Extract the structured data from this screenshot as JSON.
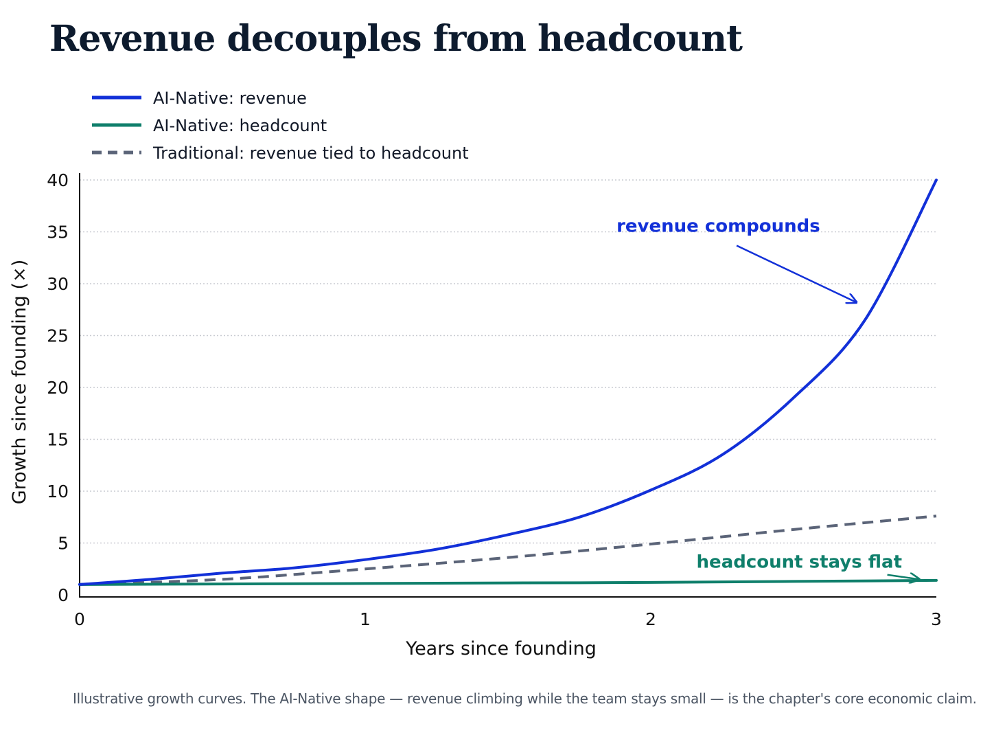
{
  "title": "Revenue decouples from headcount",
  "caption": "Illustrative growth curves. The AI-Native shape — revenue climbing while the team stays small — is the chapter's core economic claim.",
  "colors": {
    "revenue": "#1230d8",
    "headcount": "#0f7f6b",
    "traditional": "#5b6478",
    "grid": "#c9ccd2",
    "axis": "#111111"
  },
  "chart_data": {
    "type": "line",
    "xlabel": "Years since founding",
    "ylabel": "Growth since founding (×)",
    "xlim": [
      0,
      3
    ],
    "ylim": [
      0,
      40
    ],
    "x_ticks": [
      0,
      1,
      2,
      3
    ],
    "y_ticks": [
      0,
      5,
      10,
      15,
      20,
      25,
      30,
      35,
      40
    ],
    "grid": "horizontal dotted",
    "legend_position": "top-left",
    "series": [
      {
        "name": "AI-Native: revenue",
        "style": "solid",
        "color": "#1230d8",
        "x": [
          0,
          0.25,
          0.5,
          0.75,
          1,
          1.25,
          1.5,
          1.75,
          2,
          2.25,
          2.5,
          2.75,
          3
        ],
        "values": [
          1,
          1.5,
          2.1,
          2.6,
          3.4,
          4.4,
          5.8,
          7.5,
          10.1,
          13.5,
          19,
          26.5,
          40
        ]
      },
      {
        "name": "AI-Native: headcount",
        "style": "solid",
        "color": "#0f7f6b",
        "x": [
          0,
          0.5,
          1,
          1.5,
          2,
          2.5,
          3
        ],
        "values": [
          1,
          1.05,
          1.1,
          1.15,
          1.2,
          1.3,
          1.4
        ]
      },
      {
        "name": "Traditional: revenue tied to headcount",
        "style": "dashed",
        "color": "#5b6478",
        "x": [
          0,
          0.5,
          1,
          1.5,
          2,
          2.5,
          3
        ],
        "values": [
          1,
          1.5,
          2.5,
          3.6,
          4.9,
          6.3,
          7.6
        ]
      }
    ],
    "annotations": [
      {
        "text": "revenue compounds",
        "color": "#1230d8",
        "text_at": [
          1.88,
          35
        ],
        "arrow_to": [
          2.72,
          28.2
        ]
      },
      {
        "text": "headcount stays flat",
        "color": "#0f7f6b",
        "text_at": [
          2.16,
          2.6
        ],
        "arrow_to": [
          2.94,
          1.5
        ]
      }
    ]
  }
}
